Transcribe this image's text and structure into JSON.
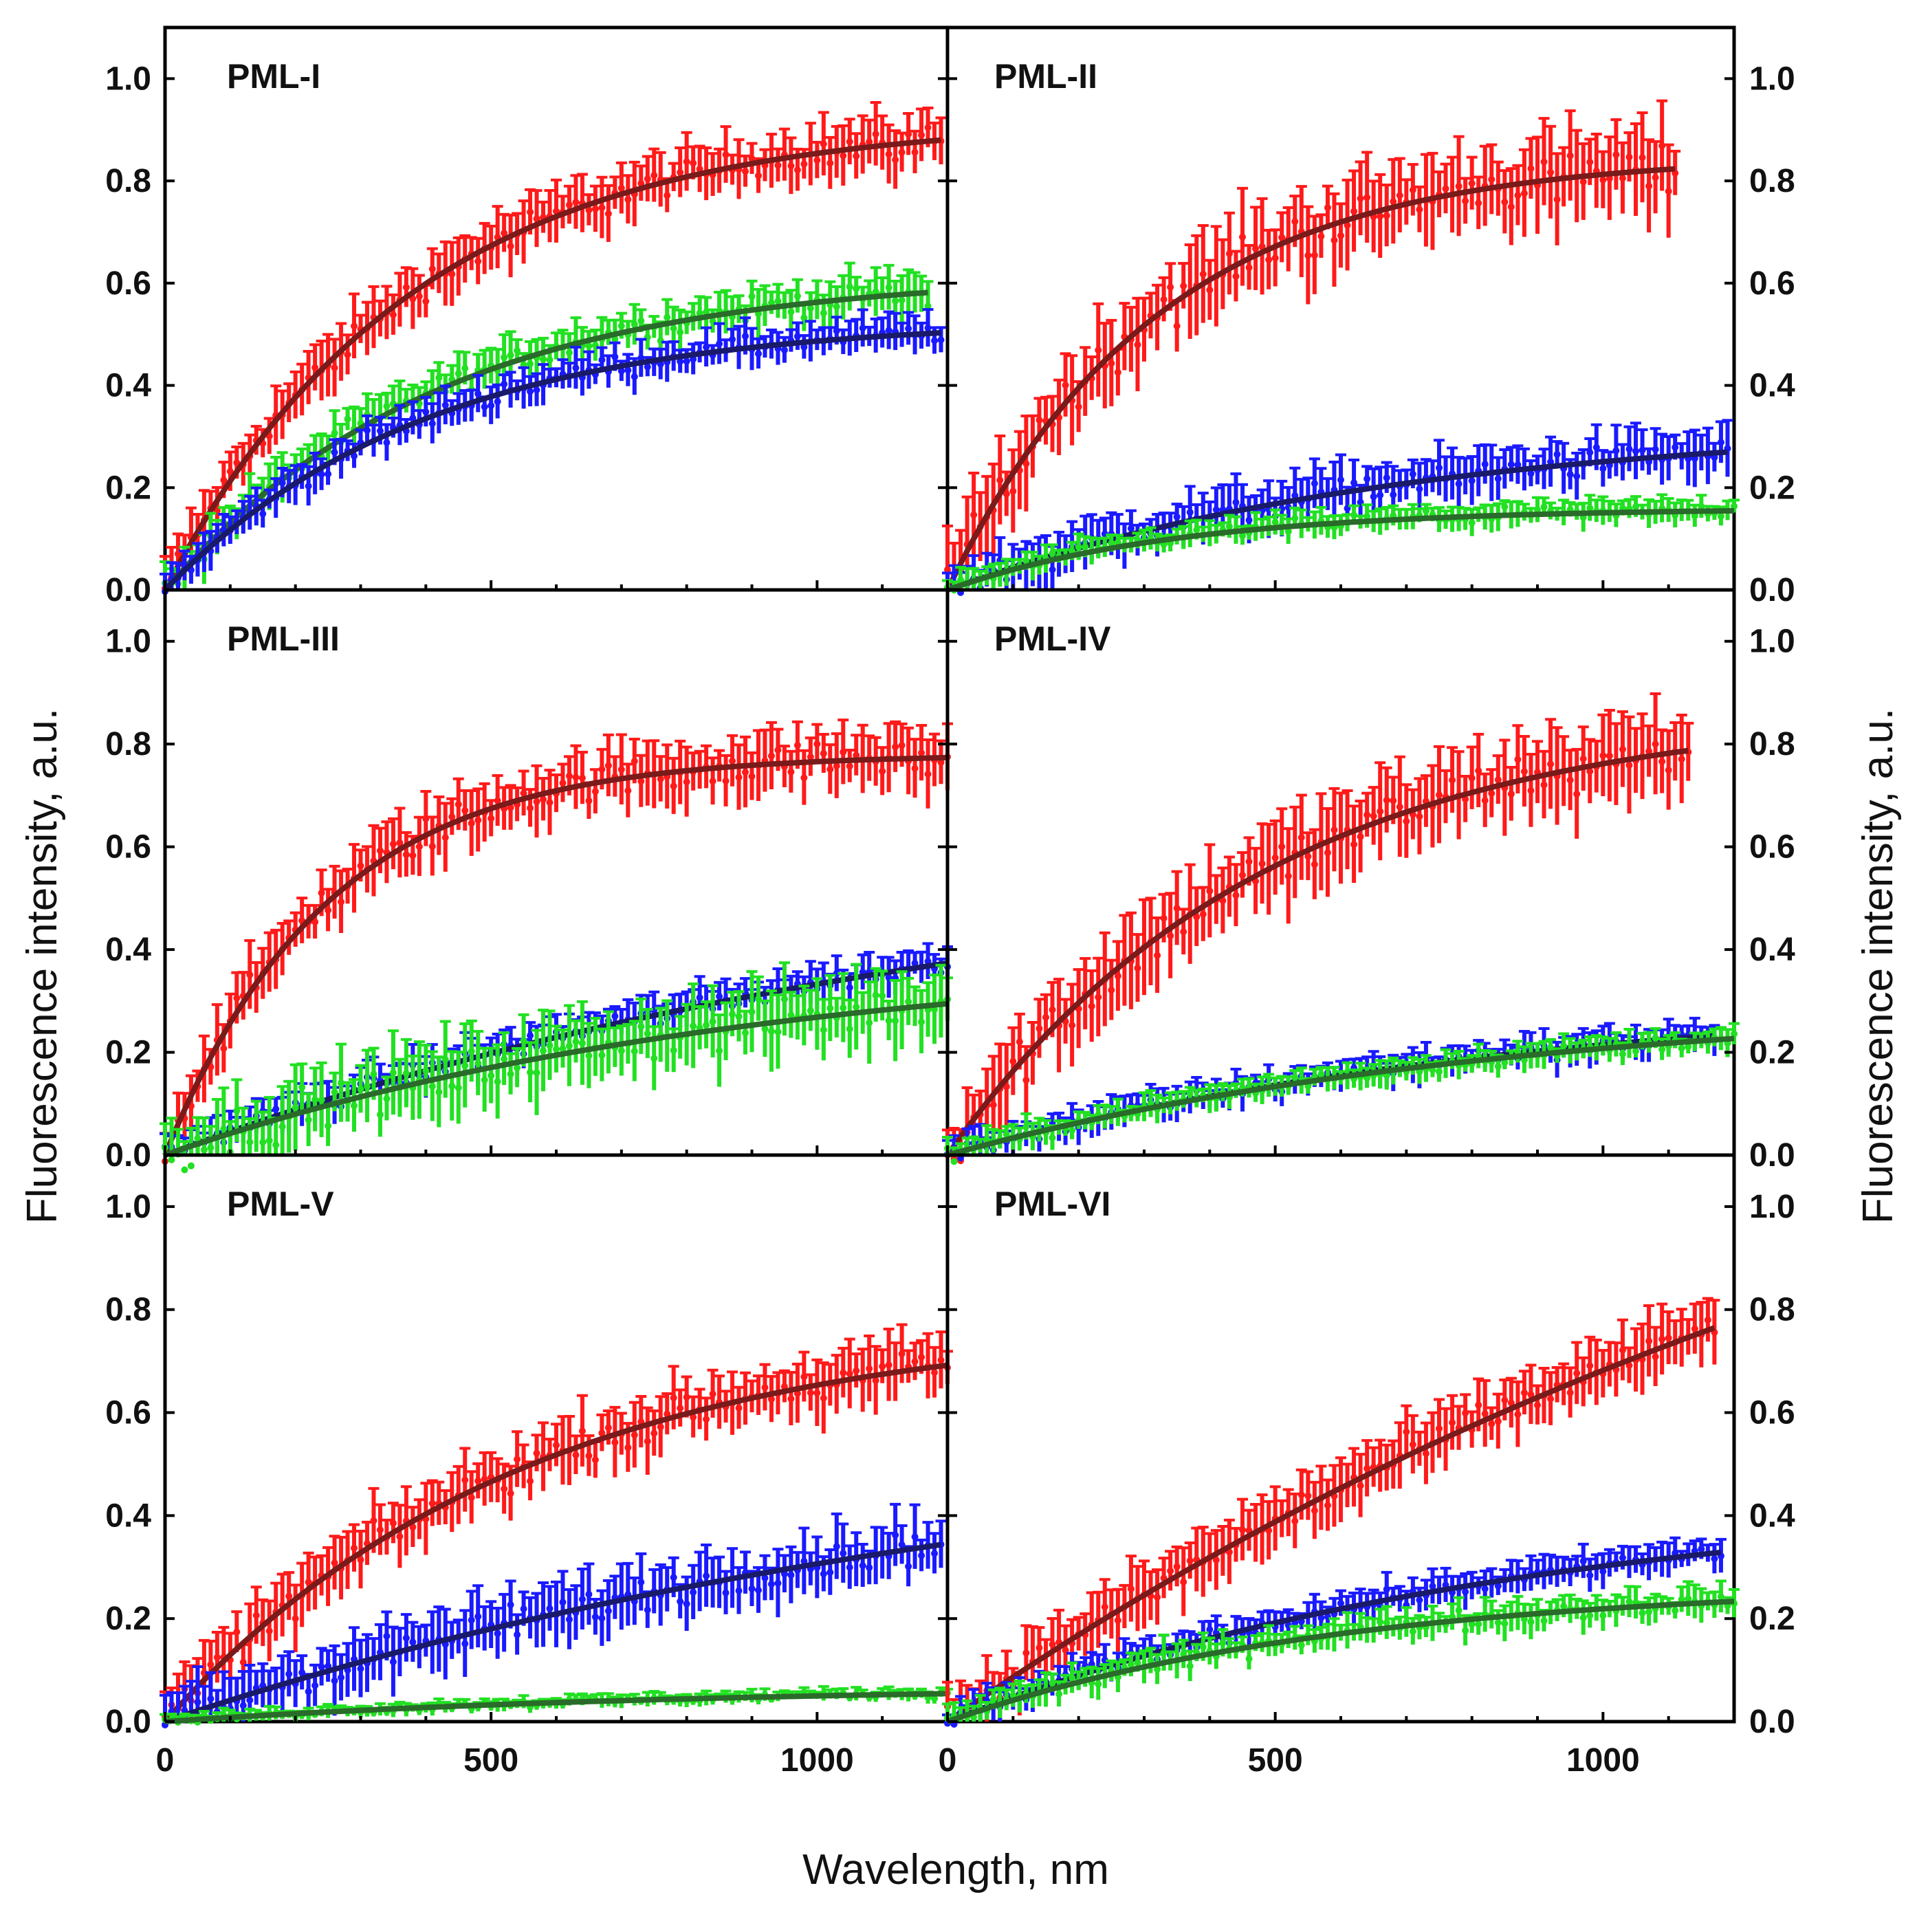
{
  "figure": {
    "xlabel": "Wavelength, nm",
    "ylabel_left": "Fluorescence intensity, a.u.",
    "ylabel_right": "Fluorescence intensity, a.u."
  },
  "chart_data": [
    {
      "type": "scatter",
      "panel": "PML-I",
      "xlim": [
        0,
        1200
      ],
      "ylim": [
        0,
        1.1
      ],
      "yticks": [
        "0.0",
        "0.2",
        "0.4",
        "0.6",
        "0.8",
        "1.0"
      ],
      "xticks": [
        "0",
        "500",
        "1000"
      ],
      "series": [
        {
          "color": "#ff1a1a",
          "fit_color": "#7a1a1a",
          "fit_max": 0.92,
          "fit_tau": 380,
          "x_end": 1190,
          "scatter": 0.045
        },
        {
          "color": "#22e022",
          "fit_color": "#2a6a2a",
          "fit_max": 0.62,
          "fit_tau": 420,
          "x_end": 1170,
          "scatter": 0.035
        },
        {
          "color": "#1a1aff",
          "fit_color": "#1a1a6a",
          "fit_max": 0.53,
          "fit_tau": 400,
          "x_end": 1190,
          "scatter": 0.03
        }
      ]
    },
    {
      "type": "scatter",
      "panel": "PML-II",
      "xlim": [
        0,
        1200
      ],
      "ylim": [
        0,
        1.1
      ],
      "yticks": [
        "0.0",
        "0.2",
        "0.4",
        "0.6",
        "0.8",
        "1.0"
      ],
      "xticks": [
        "0",
        "500",
        "1000"
      ],
      "series": [
        {
          "color": "#ff1a1a",
          "fit_color": "#7a1a1a",
          "fit_max": 0.85,
          "fit_tau": 320,
          "x_end": 1110,
          "scatter": 0.07
        },
        {
          "color": "#1a1aff",
          "fit_color": "#1a1a6a",
          "fit_max": 0.33,
          "fit_tau": 700,
          "x_end": 1190,
          "scatter": 0.04
        },
        {
          "color": "#22e022",
          "fit_color": "#2a6a2a",
          "fit_max": 0.16,
          "fit_tau": 350,
          "x_end": 1200,
          "scatter": 0.02
        }
      ]
    },
    {
      "type": "scatter",
      "panel": "PML-III",
      "xlim": [
        0,
        1200
      ],
      "ylim": [
        0,
        1.1
      ],
      "yticks": [
        "0.0",
        "0.2",
        "0.4",
        "0.6",
        "0.8",
        "1.0"
      ],
      "xticks": [
        "0",
        "500",
        "1000"
      ],
      "series": [
        {
          "color": "#ff1a1a",
          "fit_color": "#7a1a1a",
          "fit_max": 0.78,
          "fit_tau": 250,
          "x_end": 1200,
          "scatter": 0.05
        },
        {
          "color": "#1a1aff",
          "fit_color": "#1a1a6a",
          "fit_max": 0.62,
          "fit_tau": 1300,
          "x_end": 1200,
          "scatter": 0.03
        },
        {
          "color": "#22e022",
          "fit_color": "#2a6a2a",
          "fit_max": 0.4,
          "fit_tau": 900,
          "x_end": 1200,
          "scatter": 0.06
        }
      ]
    },
    {
      "type": "scatter",
      "panel": "PML-IV",
      "xlim": [
        0,
        1200
      ],
      "ylim": [
        0,
        1.1
      ],
      "yticks": [
        "0.0",
        "0.2",
        "0.4",
        "0.6",
        "0.8",
        "1.0"
      ],
      "xticks": [
        "0",
        "500",
        "1000"
      ],
      "series": [
        {
          "color": "#ff1a1a",
          "fit_color": "#7a1a1a",
          "fit_max": 0.87,
          "fit_tau": 480,
          "x_end": 1130,
          "scatter": 0.07
        },
        {
          "color": "#1a1aff",
          "fit_color": "#1a1a6a",
          "fit_max": 0.32,
          "fit_tau": 900,
          "x_end": 1170,
          "scatter": 0.025
        },
        {
          "color": "#22e022",
          "fit_color": "#2a6a2a",
          "fit_max": 0.3,
          "fit_tau": 850,
          "x_end": 1200,
          "scatter": 0.02
        }
      ]
    },
    {
      "type": "scatter",
      "panel": "PML-V",
      "xlim": [
        0,
        1200
      ],
      "ylim": [
        0,
        1.1
      ],
      "yticks": [
        "0.0",
        "0.2",
        "0.4",
        "0.6",
        "0.8",
        "1.0"
      ],
      "xticks": [
        "0",
        "500",
        "1000"
      ],
      "series": [
        {
          "color": "#ff1a1a",
          "fit_color": "#7a1a1a",
          "fit_max": 0.78,
          "fit_tau": 550,
          "x_end": 1200,
          "scatter": 0.05
        },
        {
          "color": "#1a1aff",
          "fit_color": "#1a1a6a",
          "fit_max": 0.6,
          "fit_tau": 1400,
          "x_end": 1190,
          "scatter": 0.05
        },
        {
          "color": "#22e022",
          "fit_color": "#2a6a2a",
          "fit_max": 0.07,
          "fit_tau": 800,
          "x_end": 1200,
          "scatter": 0.01
        }
      ]
    },
    {
      "type": "scatter",
      "panel": "PML-VI",
      "xlim": [
        0,
        1200
      ],
      "ylim": [
        0,
        1.1
      ],
      "yticks": [
        "0.0",
        "0.2",
        "0.4",
        "0.6",
        "0.8",
        "1.0"
      ],
      "xticks": [
        "0",
        "500",
        "1000"
      ],
      "series": [
        {
          "color": "#ff1a1a",
          "fit_color": "#7a1a1a",
          "fit_max": 1.6,
          "fit_tau": 1800,
          "x_end": 1170,
          "scatter": 0.05
        },
        {
          "color": "#1a1aff",
          "fit_color": "#1a1a6a",
          "fit_max": 0.45,
          "fit_tau": 900,
          "x_end": 1180,
          "scatter": 0.025
        },
        {
          "color": "#22e022",
          "fit_color": "#2a6a2a",
          "fit_max": 0.27,
          "fit_tau": 600,
          "x_end": 1200,
          "scatter": 0.025
        }
      ]
    }
  ]
}
